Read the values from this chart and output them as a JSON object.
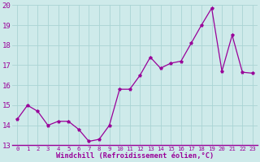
{
  "x": [
    0,
    1,
    2,
    3,
    4,
    5,
    6,
    7,
    8,
    9,
    10,
    11,
    12,
    13,
    14,
    15,
    16,
    17,
    18,
    19,
    20,
    21,
    22,
    23
  ],
  "y": [
    14.3,
    15.0,
    14.7,
    14.0,
    14.2,
    14.2,
    13.8,
    13.2,
    13.3,
    14.0,
    15.8,
    15.8,
    16.5,
    17.4,
    16.85,
    17.1,
    17.2,
    18.1,
    19.0,
    19.85,
    16.7,
    18.5,
    16.65,
    16.6
  ],
  "xlabel": "Windchill (Refroidissement éolien,°C)",
  "ylim": [
    13,
    20
  ],
  "xlim": [
    -0.5,
    23.5
  ],
  "yticks": [
    13,
    14,
    15,
    16,
    17,
    18,
    19,
    20
  ],
  "xticks": [
    0,
    1,
    2,
    3,
    4,
    5,
    6,
    7,
    8,
    9,
    10,
    11,
    12,
    13,
    14,
    15,
    16,
    17,
    18,
    19,
    20,
    21,
    22,
    23
  ],
  "line_color": "#990099",
  "marker": "*",
  "bg_color": "#ceeaea",
  "grid_color": "#aad4d4",
  "xlabel_color": "#990099",
  "tick_color": "#990099",
  "font_family": "monospace",
  "ytick_fontsize": 6.5,
  "xtick_fontsize": 5.2,
  "xlabel_fontsize": 6.2
}
